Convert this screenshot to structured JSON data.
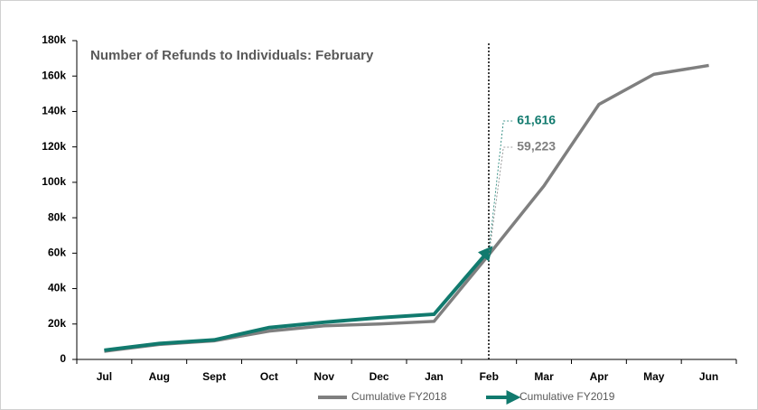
{
  "chart_data": {
    "type": "line",
    "title": "Number of  Refunds to Individuals: February",
    "categories": [
      "Jul",
      "Aug",
      "Sept",
      "Oct",
      "Nov",
      "Dec",
      "Jan",
      "Feb",
      "Mar",
      "Apr",
      "May",
      "Jun"
    ],
    "series": [
      {
        "name": "Cumulative  FY2018",
        "color": "#7f7f7f",
        "values": [
          4600,
          8500,
          10500,
          16000,
          19000,
          20000,
          21500,
          59223,
          98000,
          144000,
          161000,
          166000
        ],
        "value_labels": [
          null,
          null,
          null,
          null,
          null,
          null,
          null,
          "59,223",
          null,
          null,
          null,
          null
        ]
      },
      {
        "name": "Cumulative  FY2019",
        "color": "#117a6e",
        "values": [
          5200,
          9000,
          11000,
          18000,
          21000,
          23500,
          25500,
          61616,
          null,
          null,
          null,
          null
        ],
        "value_labels": [
          null,
          null,
          null,
          null,
          null,
          null,
          null,
          "61,616",
          null,
          null,
          null,
          null
        ]
      }
    ],
    "ylim": [
      0,
      180000
    ],
    "yticks": [
      0,
      {
        "value": 20000,
        "label": "20k"
      },
      {
        "value": 40000,
        "label": "40k"
      },
      {
        "value": 60000,
        "label": "60k"
      },
      {
        "value": 80000,
        "label": "80k"
      },
      {
        "value": 100000,
        "label": "100k"
      },
      {
        "value": 120000,
        "label": "120k"
      },
      {
        "value": 140000,
        "label": "140k"
      },
      {
        "value": 160000,
        "label": "160k"
      },
      {
        "value": 180000,
        "label": "180k"
      }
    ],
    "grid": false,
    "legend": "bottom"
  }
}
